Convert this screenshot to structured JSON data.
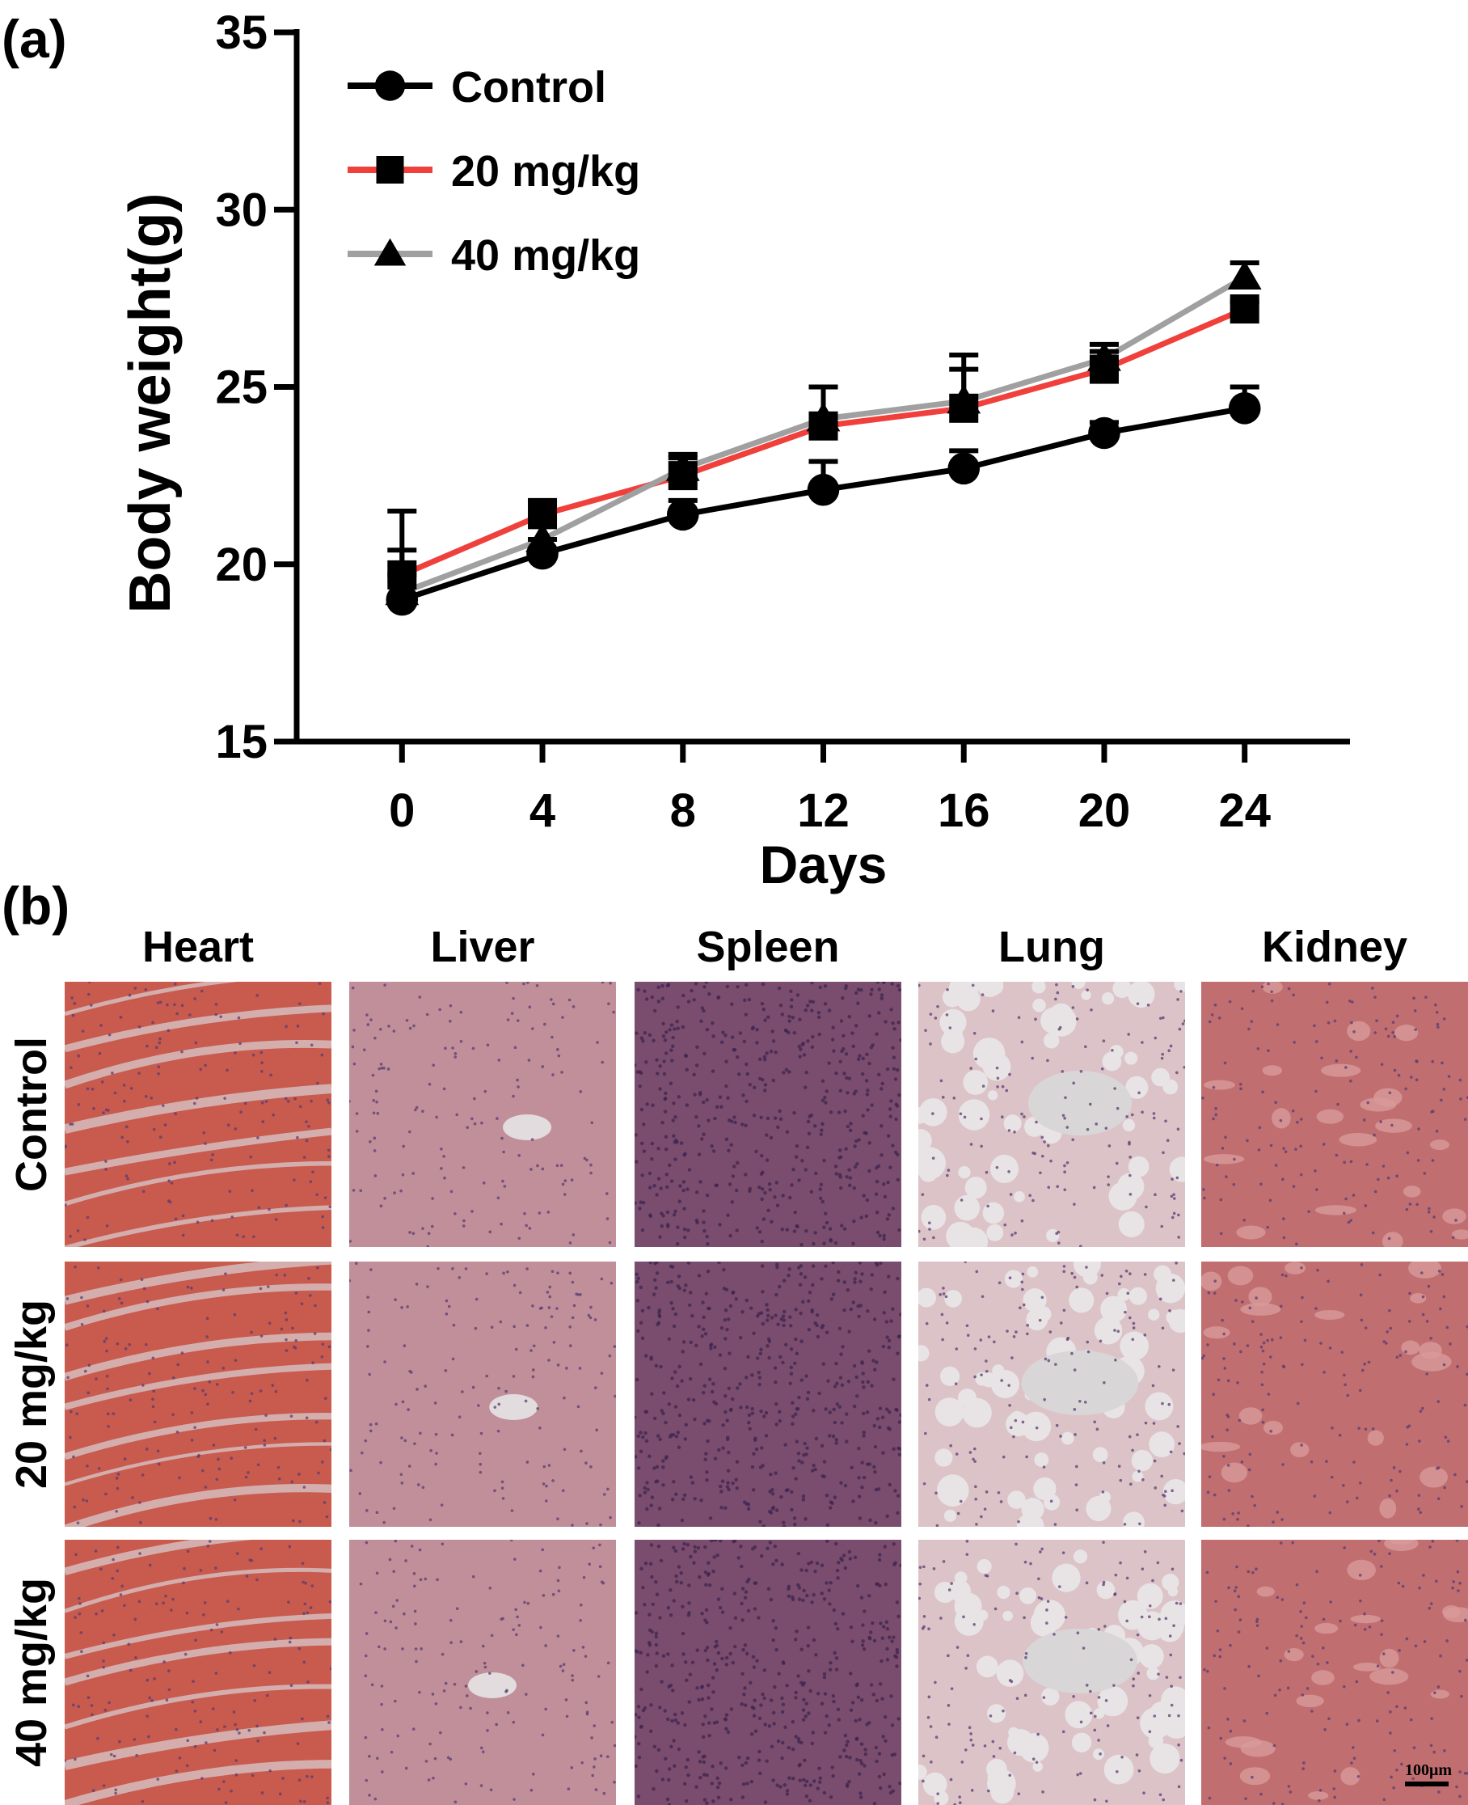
{
  "panels": {
    "a_label": "(a)",
    "b_label": "(b)"
  },
  "chart_data": {
    "type": "line",
    "xlabel": "Days",
    "ylabel": "Body weight(g)",
    "x": [
      0,
      4,
      8,
      12,
      16,
      20,
      24
    ],
    "xticks": [
      "0",
      "4",
      "8",
      "12",
      "16",
      "20",
      "24"
    ],
    "yticks": [
      "15",
      "20",
      "25",
      "30",
      "35"
    ],
    "xlim": [
      -3,
      27
    ],
    "ylim": [
      15,
      35
    ],
    "legend_position": "top-left",
    "series": [
      {
        "name": "Control",
        "color": "#000000",
        "marker": "circle",
        "values": [
          19.0,
          20.3,
          21.4,
          22.1,
          22.7,
          23.7,
          24.4
        ],
        "errors": [
          0.7,
          0.4,
          0.4,
          0.8,
          0.5,
          0.3,
          0.6
        ]
      },
      {
        "name": "20 mg/kg",
        "color": "#f0403c",
        "marker": "square",
        "values": [
          19.7,
          21.4,
          22.5,
          23.9,
          24.4,
          25.5,
          27.2
        ],
        "errors": [
          1.8,
          0.4,
          0.5,
          1.1,
          1.5,
          0.5,
          0.2
        ]
      },
      {
        "name": "40 mg/kg",
        "color": "#a0a0a0",
        "marker": "triangle",
        "values": [
          19.2,
          20.7,
          22.7,
          24.1,
          24.6,
          25.8,
          28.1
        ],
        "errors": [
          1.2,
          0.6,
          0.4,
          0.9,
          0.9,
          0.4,
          0.4
        ]
      }
    ]
  },
  "histology": {
    "columns": [
      "Heart",
      "Liver",
      "Spleen",
      "Lung",
      "Kidney"
    ],
    "rows": [
      "Control",
      "20 mg/kg",
      "40 mg/kg"
    ],
    "scale_bar_label": "100μm",
    "tile_colors": {
      "Heart": "#c85a4e",
      "Liver": "#c08f9a",
      "Spleen": "#7a4c6e",
      "Lung": "#dcc3c8",
      "Kidney": "#c06e70"
    }
  }
}
